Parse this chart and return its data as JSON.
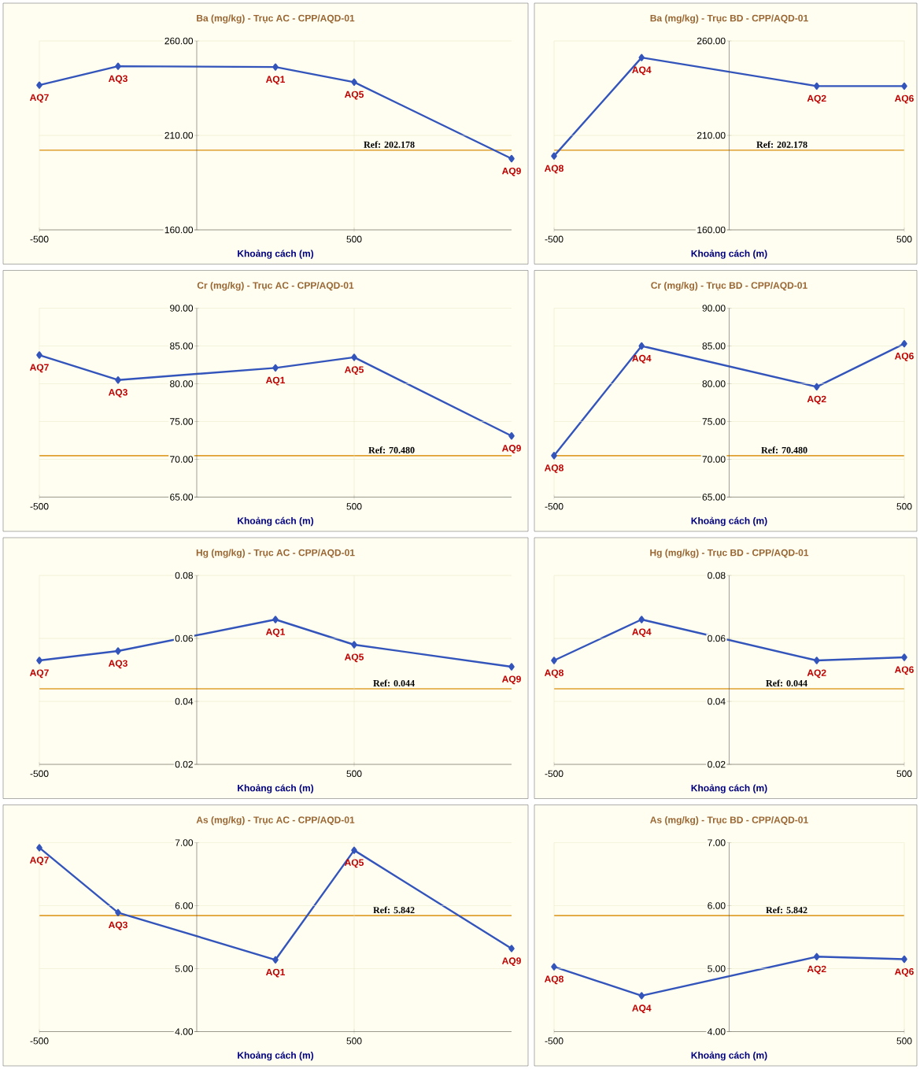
{
  "chart_data": [
    {
      "type": "line",
      "title": "Ba (mg/kg) - Trục AC - CPP/AQD-01",
      "xlabel": "Khoảng cách (m)",
      "x": [
        -500,
        -250,
        250,
        500,
        1000
      ],
      "xlim": [
        -500,
        1000
      ],
      "xticks": [
        -500,
        500
      ],
      "ylim": [
        160,
        260
      ],
      "yticks": [
        {
          "value": 160,
          "label": "160.00"
        },
        {
          "value": 210,
          "label": "210.00"
        },
        {
          "value": 260,
          "label": "260.00"
        }
      ],
      "grid": true,
      "marker": "diamond",
      "line_style": "solid",
      "series": [
        {
          "color": "#3355bb",
          "values": [
            236.6,
            246.6,
            246.2,
            238.2,
            197.7
          ]
        }
      ],
      "ref_lines": [
        {
          "axis": "y",
          "value": 202.178,
          "label": "Ref: 202.178",
          "color": "#e0a030"
        }
      ],
      "annotations": [
        {
          "text": "AQ7",
          "x": -500,
          "y": 236.6
        },
        {
          "text": "AQ3",
          "x": -250,
          "y": 246.6
        },
        {
          "text": "AQ1",
          "x": 250,
          "y": 246.2
        },
        {
          "text": "AQ5",
          "x": 500,
          "y": 238.2
        },
        {
          "text": "AQ9",
          "x": 1000,
          "y": 197.7
        }
      ]
    },
    {
      "type": "line",
      "title": "Ba (mg/kg) - Trục BD - CPP/AQD-01",
      "xlabel": "Khoảng cách (m)",
      "x": [
        -500,
        -250,
        250,
        500
      ],
      "xlim": [
        -500,
        500
      ],
      "xticks": [
        -500,
        500
      ],
      "ylim": [
        160,
        260
      ],
      "yticks": [
        {
          "value": 160,
          "label": "160.00"
        },
        {
          "value": 210,
          "label": "210.00"
        },
        {
          "value": 260,
          "label": "260.00"
        }
      ],
      "grid": true,
      "marker": "diamond",
      "line_style": "solid",
      "series": [
        {
          "color": "#3355bb",
          "values": [
            199.1,
            251.2,
            236.1,
            236.1
          ]
        }
      ],
      "ref_lines": [
        {
          "axis": "y",
          "value": 202.178,
          "label": "Ref: 202.178",
          "color": "#e0a030"
        }
      ],
      "annotations": [
        {
          "text": "AQ8",
          "x": -500,
          "y": 199.1
        },
        {
          "text": "AQ4",
          "x": -250,
          "y": 251.2
        },
        {
          "text": "AQ2",
          "x": 250,
          "y": 236.1
        },
        {
          "text": "AQ6",
          "x": 500,
          "y": 236.1
        }
      ]
    },
    {
      "type": "line",
      "title": "Cr (mg/kg) - Trục AC - CPP/AQD-01",
      "xlabel": "Khoảng cách (m)",
      "x": [
        -500,
        -250,
        250,
        500,
        1000
      ],
      "xlim": [
        -500,
        1000
      ],
      "xticks": [
        -500,
        500
      ],
      "ylim": [
        65,
        90
      ],
      "yticks": [
        {
          "value": 65,
          "label": "65.00"
        },
        {
          "value": 70,
          "label": "70.00"
        },
        {
          "value": 75,
          "label": "75.00"
        },
        {
          "value": 80,
          "label": "80.00"
        },
        {
          "value": 85,
          "label": "85.00"
        },
        {
          "value": 90,
          "label": "90.00"
        }
      ],
      "grid": true,
      "marker": "diamond",
      "line_style": "solid",
      "series": [
        {
          "color": "#3355bb",
          "values": [
            83.8,
            80.5,
            82.1,
            83.5,
            73.1
          ]
        }
      ],
      "ref_lines": [
        {
          "axis": "y",
          "value": 70.48,
          "label": "Ref: 70.480",
          "color": "#e0a030"
        }
      ],
      "annotations": [
        {
          "text": "AQ7",
          "x": -500,
          "y": 83.8
        },
        {
          "text": "AQ3",
          "x": -250,
          "y": 80.5
        },
        {
          "text": "AQ1",
          "x": 250,
          "y": 82.1
        },
        {
          "text": "AQ5",
          "x": 500,
          "y": 83.5
        },
        {
          "text": "AQ9",
          "x": 1000,
          "y": 73.1
        }
      ]
    },
    {
      "type": "line",
      "title": "Cr (mg/kg) - Trục BD - CPP/AQD-01",
      "xlabel": "Khoảng cách (m)",
      "x": [
        -500,
        -250,
        250,
        500
      ],
      "xlim": [
        -500,
        500
      ],
      "xticks": [
        -500,
        500
      ],
      "ylim": [
        65,
        90
      ],
      "yticks": [
        {
          "value": 65,
          "label": "65.00"
        },
        {
          "value": 70,
          "label": "70.00"
        },
        {
          "value": 75,
          "label": "75.00"
        },
        {
          "value": 80,
          "label": "80.00"
        },
        {
          "value": 85,
          "label": "85.00"
        },
        {
          "value": 90,
          "label": "90.00"
        }
      ],
      "grid": true,
      "marker": "diamond",
      "line_style": "solid",
      "series": [
        {
          "color": "#3355bb",
          "values": [
            70.5,
            85.0,
            79.6,
            85.3
          ]
        }
      ],
      "ref_lines": [
        {
          "axis": "y",
          "value": 70.48,
          "label": "Ref: 70.480",
          "color": "#e0a030"
        }
      ],
      "annotations": [
        {
          "text": "AQ8",
          "x": -500,
          "y": 70.5
        },
        {
          "text": "AQ4",
          "x": -250,
          "y": 85.0
        },
        {
          "text": "AQ2",
          "x": 250,
          "y": 79.6
        },
        {
          "text": "AQ6",
          "x": 500,
          "y": 85.3
        }
      ]
    },
    {
      "type": "line",
      "title": "Hg (mg/kg) - Trục AC - CPP/AQD-01",
      "xlabel": "Khoảng cách (m)",
      "x": [
        -500,
        -250,
        250,
        500,
        1000
      ],
      "xlim": [
        -500,
        1000
      ],
      "xticks": [
        -500,
        500
      ],
      "ylim": [
        0.02,
        0.08
      ],
      "yticks": [
        {
          "value": 0.02,
          "label": "0.02"
        },
        {
          "value": 0.04,
          "label": "0.04"
        },
        {
          "value": 0.06,
          "label": "0.06"
        },
        {
          "value": 0.08,
          "label": "0.08"
        }
      ],
      "grid": true,
      "marker": "diamond",
      "line_style": "solid",
      "series": [
        {
          "color": "#3355bb",
          "values": [
            0.053,
            0.056,
            0.066,
            0.058,
            0.051
          ]
        }
      ],
      "ref_lines": [
        {
          "axis": "y",
          "value": 0.044,
          "label": "Ref: 0.044",
          "color": "#e0a030"
        }
      ],
      "annotations": [
        {
          "text": "AQ7",
          "x": -500,
          "y": 0.053
        },
        {
          "text": "AQ3",
          "x": -250,
          "y": 0.056
        },
        {
          "text": "AQ1",
          "x": 250,
          "y": 0.066
        },
        {
          "text": "AQ5",
          "x": 500,
          "y": 0.058
        },
        {
          "text": "AQ9",
          "x": 1000,
          "y": 0.051
        }
      ]
    },
    {
      "type": "line",
      "title": "Hg (mg/kg) - Trục BD - CPP/AQD-01",
      "xlabel": "Khoảng cách (m)",
      "x": [
        -500,
        -250,
        250,
        500
      ],
      "xlim": [
        -500,
        500
      ],
      "xticks": [
        -500,
        500
      ],
      "ylim": [
        0.02,
        0.08
      ],
      "yticks": [
        {
          "value": 0.02,
          "label": "0.02"
        },
        {
          "value": 0.04,
          "label": "0.04"
        },
        {
          "value": 0.06,
          "label": "0.06"
        },
        {
          "value": 0.08,
          "label": "0.08"
        }
      ],
      "grid": true,
      "marker": "diamond",
      "line_style": "solid",
      "series": [
        {
          "color": "#3355bb",
          "values": [
            0.053,
            0.066,
            0.053,
            0.054
          ]
        }
      ],
      "ref_lines": [
        {
          "axis": "y",
          "value": 0.044,
          "label": "Ref: 0.044",
          "color": "#e0a030"
        }
      ],
      "annotations": [
        {
          "text": "AQ8",
          "x": -500,
          "y": 0.053
        },
        {
          "text": "AQ4",
          "x": -250,
          "y": 0.066
        },
        {
          "text": "AQ2",
          "x": 250,
          "y": 0.053
        },
        {
          "text": "AQ6",
          "x": 500,
          "y": 0.054
        }
      ]
    },
    {
      "type": "line",
      "title": "As (mg/kg) - Trục AC - CPP/AQD-01",
      "xlabel": "Khoảng cách (m)",
      "x": [
        -500,
        -250,
        250,
        500,
        1000
      ],
      "xlim": [
        -500,
        1000
      ],
      "xticks": [
        -500,
        500
      ],
      "ylim": [
        4,
        7
      ],
      "yticks": [
        {
          "value": 4,
          "label": "4.00"
        },
        {
          "value": 5,
          "label": "5.00"
        },
        {
          "value": 6,
          "label": "6.00"
        },
        {
          "value": 7,
          "label": "7.00"
        }
      ],
      "grid": true,
      "marker": "diamond",
      "line_style": "solid",
      "series": [
        {
          "color": "#3355bb",
          "values": [
            6.92,
            5.89,
            5.14,
            6.88,
            5.32
          ]
        }
      ],
      "ref_lines": [
        {
          "axis": "y",
          "value": 5.842,
          "label": "Ref: 5.842",
          "color": "#e0a030"
        }
      ],
      "annotations": [
        {
          "text": "AQ7",
          "x": -500,
          "y": 6.92
        },
        {
          "text": "AQ3",
          "x": -250,
          "y": 5.89
        },
        {
          "text": "AQ1",
          "x": 250,
          "y": 5.14
        },
        {
          "text": "AQ5",
          "x": 500,
          "y": 6.88
        },
        {
          "text": "AQ9",
          "x": 1000,
          "y": 5.32
        }
      ]
    },
    {
      "type": "line",
      "title": "As (mg/kg) - Trục BD - CPP/AQD-01",
      "xlabel": "Khoảng cách (m)",
      "x": [
        -500,
        -250,
        250,
        500
      ],
      "xlim": [
        -500,
        500
      ],
      "xticks": [
        -500,
        500
      ],
      "ylim": [
        4,
        7
      ],
      "yticks": [
        {
          "value": 4,
          "label": "4.00"
        },
        {
          "value": 5,
          "label": "5.00"
        },
        {
          "value": 6,
          "label": "6.00"
        },
        {
          "value": 7,
          "label": "7.00"
        }
      ],
      "grid": true,
      "marker": "diamond",
      "line_style": "solid",
      "series": [
        {
          "color": "#3355bb",
          "values": [
            5.03,
            4.57,
            5.19,
            5.15
          ]
        }
      ],
      "ref_lines": [
        {
          "axis": "y",
          "value": 5.842,
          "label": "Ref: 5.842",
          "color": "#e0a030"
        }
      ],
      "annotations": [
        {
          "text": "AQ8",
          "x": -500,
          "y": 5.03
        },
        {
          "text": "AQ4",
          "x": -250,
          "y": 4.57
        },
        {
          "text": "AQ2",
          "x": 250,
          "y": 5.19
        },
        {
          "text": "AQ6",
          "x": 500,
          "y": 5.15
        }
      ]
    }
  ]
}
